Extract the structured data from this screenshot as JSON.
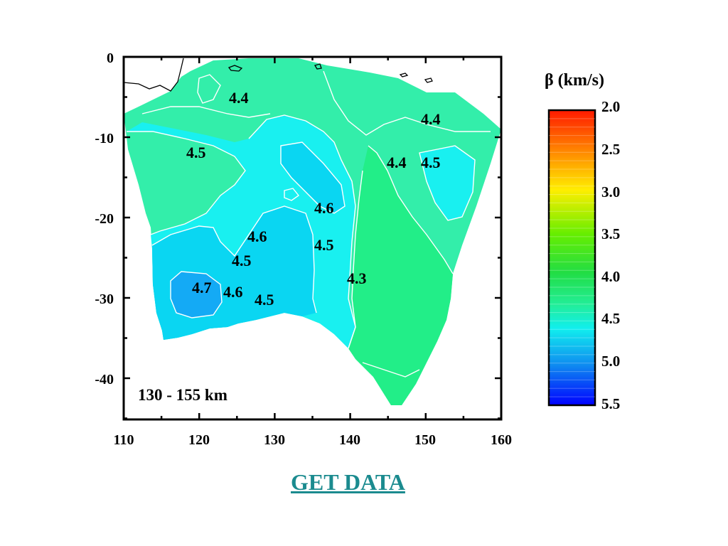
{
  "colors": {
    "zone_4_3": "#22ee88",
    "zone_4_4": "#33eeaa",
    "zone_4_5": "#19f0f0",
    "zone_4_6": "#0ad6f2",
    "zone_4_7": "#14aaf5",
    "contour": "#ffffff",
    "coastline": "#000000",
    "link": "#1b8b8f"
  },
  "map": {
    "depth_label": "130 - 155 km",
    "x_ticks": [
      "110",
      "120",
      "130",
      "140",
      "150",
      "160"
    ],
    "y_ticks": [
      "0",
      "-10",
      "-20",
      "-30",
      "-40"
    ],
    "contour_labels": [
      "4.4",
      "4.4",
      "4.5",
      "4.4",
      "4.5",
      "4.6",
      "4.6",
      "4.5",
      "4.5",
      "4.3",
      "4.7",
      "4.6",
      "4.5"
    ]
  },
  "colorbar": {
    "title": "β (km/s)",
    "labels": [
      "2.0",
      "2.5",
      "3.0",
      "3.5",
      "4.0",
      "4.5",
      "5.0",
      "5.5"
    ]
  },
  "link": {
    "label": "GET DATA"
  }
}
